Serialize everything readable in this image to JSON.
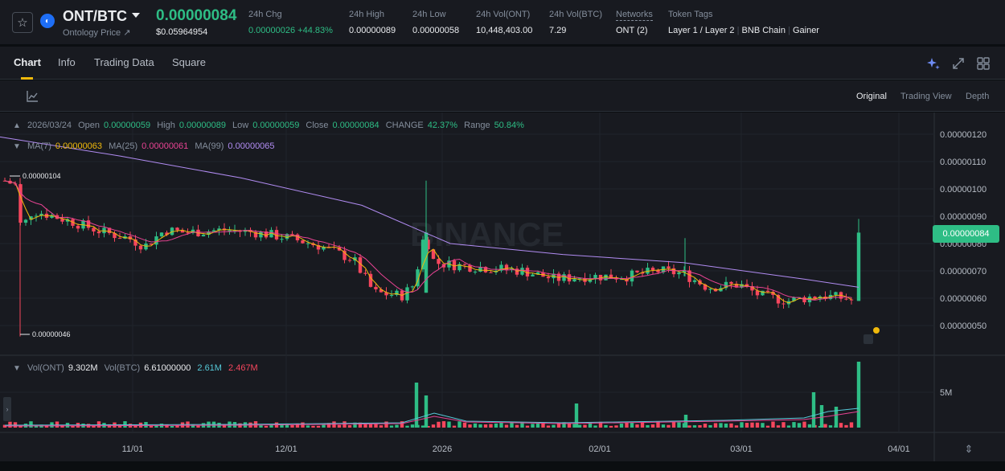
{
  "header": {
    "pair": "ONT/BTC",
    "coin_sub": "Ontology Price ↗",
    "last_price": "0.00000084",
    "usd_price": "$0.05964954",
    "stats": [
      {
        "label": "24h Chg",
        "value": "0.00000026 +44.83%",
        "green": true
      },
      {
        "label": "24h High",
        "value": "0.00000089",
        "green": false
      },
      {
        "label": "24h Low",
        "value": "0.00000058",
        "green": false
      },
      {
        "label": "24h Vol(ONT)",
        "value": "10,448,403.00",
        "green": false
      },
      {
        "label": "24h Vol(BTC)",
        "value": "7.29",
        "green": false
      },
      {
        "label": "Networks",
        "value": "ONT (2)",
        "green": false
      }
    ],
    "token_tags_label": "Token Tags",
    "token_tags": [
      "Layer 1 / Layer 2",
      "BNB Chain",
      "Gainer"
    ]
  },
  "tabs": [
    "Chart",
    "Info",
    "Trading Data",
    "Square"
  ],
  "view_options": [
    "Original",
    "Trading View",
    "Depth"
  ],
  "icons": {
    "star": "star-icon",
    "ai": "sparkle-icon",
    "expand": "expand-icon",
    "layout": "grid-layout-icon",
    "indicator": "line-chart-icon",
    "scale": "vertical-resize-icon"
  },
  "ohlc": {
    "date": "2026/03/24",
    "open_label": "Open",
    "open": "0.00000059",
    "high_label": "High",
    "high": "0.00000089",
    "low_label": "Low",
    "low": "0.00000059",
    "close_label": "Close",
    "close": "0.00000084",
    "change_label": "CHANGE",
    "change": "42.37%",
    "range_label": "Range",
    "range": "50.84%"
  },
  "ma": {
    "ma7_label": "MA(7)",
    "ma7": "0.00000063",
    "ma25_label": "MA(25)",
    "ma25": "0.00000061",
    "ma99_label": "MA(99)",
    "ma99": "0.00000065"
  },
  "volume_legend": {
    "vol_ont_label": "Vol(ONT)",
    "vol_ont": "9.302M",
    "vol_btc_label": "Vol(BTC)",
    "vol_btc": "6.61000000",
    "ma1": "2.61M",
    "ma2": "2.467M"
  },
  "price_axis": [
    "0.00000120",
    "0.00000110",
    "0.00000100",
    "0.00000090",
    "0.00000080",
    "0.00000070",
    "0.00000060",
    "0.00000050"
  ],
  "volume_axis": [
    "5M"
  ],
  "time_axis": [
    "11/01",
    "12/01",
    "2026",
    "02/01",
    "03/01",
    "04/01"
  ],
  "current_price_tag": "0.00000084",
  "high_marker": "0.00000104",
  "low_marker": "0.00000046",
  "watermark": "BINANCE",
  "colors": {
    "up": "#2ebd85",
    "down": "#f6465d",
    "ma7": "#f0b90b",
    "ma25": "#e84393",
    "ma99": "#b18cf2",
    "accent": "#f0b90b"
  }
}
